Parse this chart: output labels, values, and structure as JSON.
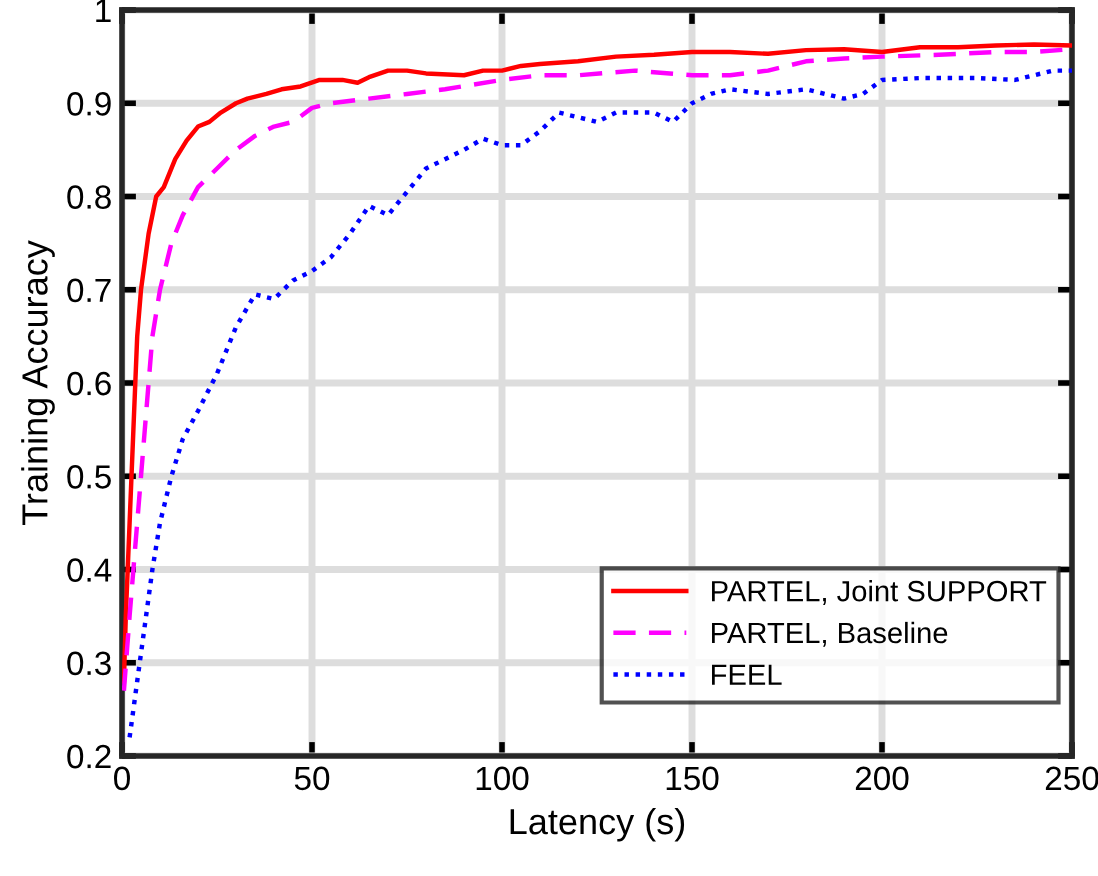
{
  "chart_data": {
    "type": "line",
    "xlabel": "Latency (s)",
    "ylabel": "Training Accuracy",
    "xlim": [
      0,
      250
    ],
    "ylim": [
      0.2,
      1
    ],
    "xticks": [
      0,
      50,
      100,
      150,
      200,
      250
    ],
    "yticks": [
      {
        "value": 0.2,
        "label": "0.2"
      },
      {
        "value": 0.3,
        "label": "0.3"
      },
      {
        "value": 0.4,
        "label": "0.4"
      },
      {
        "value": 0.5,
        "label": "0.5"
      },
      {
        "value": 0.6,
        "label": "0.6"
      },
      {
        "value": 0.7,
        "label": "0.7"
      },
      {
        "value": 0.8,
        "label": "0.8"
      },
      {
        "value": 0.9,
        "label": "0.9"
      },
      {
        "value": 1,
        "label": "1"
      }
    ],
    "grid": true,
    "legend": "bottom right",
    "series": [
      {
        "name": "PARTEL, Joint SUPPORT",
        "color": "#ff0000",
        "line_style": "solid",
        "x": [
          0.5,
          1,
          2,
          3,
          4,
          5,
          7,
          9,
          11,
          14,
          17,
          20,
          23,
          26,
          30,
          33,
          38,
          42,
          47,
          52,
          58,
          62,
          65,
          70,
          75,
          80,
          90,
          95,
          100,
          105,
          110,
          120,
          130,
          140,
          150,
          160,
          170,
          180,
          190,
          200,
          210,
          220,
          230,
          240,
          250
        ],
        "values": [
          0.28,
          0.35,
          0.45,
          0.55,
          0.65,
          0.7,
          0.76,
          0.8,
          0.81,
          0.84,
          0.86,
          0.875,
          0.88,
          0.89,
          0.9,
          0.905,
          0.91,
          0.915,
          0.918,
          0.925,
          0.925,
          0.922,
          0.928,
          0.935,
          0.935,
          0.932,
          0.93,
          0.935,
          0.935,
          0.94,
          0.942,
          0.945,
          0.95,
          0.952,
          0.955,
          0.955,
          0.953,
          0.957,
          0.958,
          0.955,
          0.96,
          0.96,
          0.962,
          0.963,
          0.962
        ]
      },
      {
        "name": "PARTEL, Baseline",
        "color": "#ff00ff",
        "line_style": "dashed",
        "x": [
          0.5,
          2,
          4,
          6,
          8,
          10,
          13,
          16,
          20,
          25,
          30,
          35,
          40,
          45,
          50,
          55,
          65,
          75,
          85,
          100,
          110,
          120,
          135,
          150,
          160,
          170,
          180,
          190,
          200,
          215,
          230,
          240,
          250
        ],
        "values": [
          0.27,
          0.35,
          0.45,
          0.55,
          0.65,
          0.7,
          0.75,
          0.78,
          0.81,
          0.83,
          0.85,
          0.865,
          0.875,
          0.88,
          0.895,
          0.9,
          0.905,
          0.91,
          0.915,
          0.925,
          0.93,
          0.93,
          0.935,
          0.93,
          0.93,
          0.935,
          0.945,
          0.948,
          0.95,
          0.952,
          0.955,
          0.955,
          0.958
        ]
      },
      {
        "name": "FEEL",
        "color": "#0000ff",
        "line_style": "dotted",
        "x": [
          2,
          4,
          6,
          8,
          10,
          13,
          16,
          20,
          25,
          30,
          35,
          40,
          45,
          50,
          55,
          60,
          65,
          70,
          75,
          80,
          90,
          95,
          100,
          105,
          110,
          115,
          120,
          125,
          130,
          140,
          145,
          150,
          155,
          160,
          170,
          180,
          190,
          195,
          200,
          210,
          225,
          235,
          245,
          250
        ],
        "values": [
          0.22,
          0.28,
          0.34,
          0.4,
          0.45,
          0.5,
          0.54,
          0.57,
          0.61,
          0.66,
          0.695,
          0.69,
          0.71,
          0.72,
          0.735,
          0.76,
          0.79,
          0.78,
          0.805,
          0.83,
          0.85,
          0.862,
          0.855,
          0.855,
          0.87,
          0.89,
          0.885,
          0.88,
          0.89,
          0.89,
          0.88,
          0.9,
          0.91,
          0.915,
          0.91,
          0.915,
          0.905,
          0.91,
          0.925,
          0.927,
          0.927,
          0.925,
          0.935,
          0.935
        ]
      }
    ]
  }
}
